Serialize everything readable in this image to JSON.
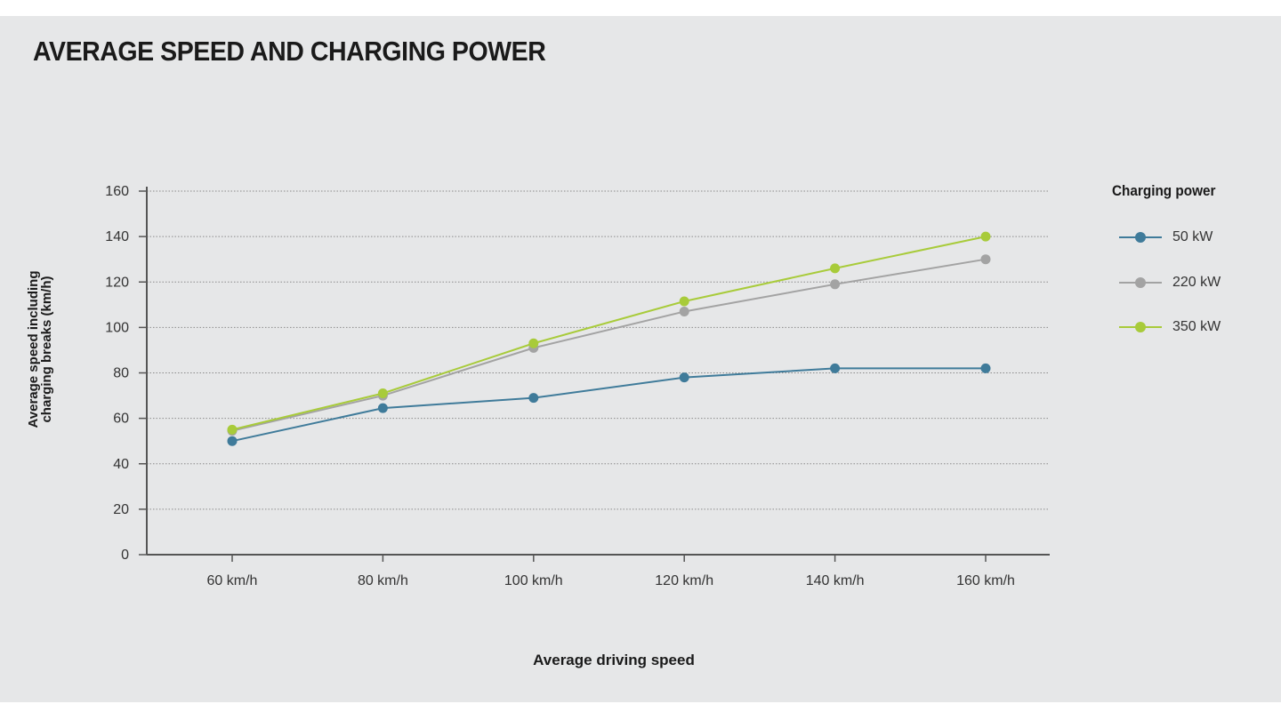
{
  "chart_data": {
    "type": "line",
    "title": "AVERAGE SPEED AND CHARGING POWER",
    "xlabel": "Average driving speed",
    "ylabel": "Average speed including charging breaks (km/h)",
    "categories": [
      "60 km/h",
      "80 km/h",
      "100 km/h",
      "120 km/h",
      "140 km/h",
      "160 km/h"
    ],
    "ylim": [
      0,
      160
    ],
    "yticks": [
      0,
      20,
      40,
      60,
      80,
      100,
      120,
      140,
      160
    ],
    "grid": "horizontal dotted",
    "legend_title": "Charging power",
    "legend_position": "right",
    "series": [
      {
        "name": "50 kW",
        "color": "#3f7b9a",
        "values": [
          50,
          64.5,
          69,
          78,
          82,
          82
        ]
      },
      {
        "name": "220 kW",
        "color": "#a3a3a3",
        "values": [
          54.5,
          70,
          91,
          107,
          119,
          130
        ]
      },
      {
        "name": "350 kW",
        "color": "#a8cb3a",
        "values": [
          55,
          71,
          93,
          111.5,
          126,
          140
        ]
      }
    ]
  }
}
